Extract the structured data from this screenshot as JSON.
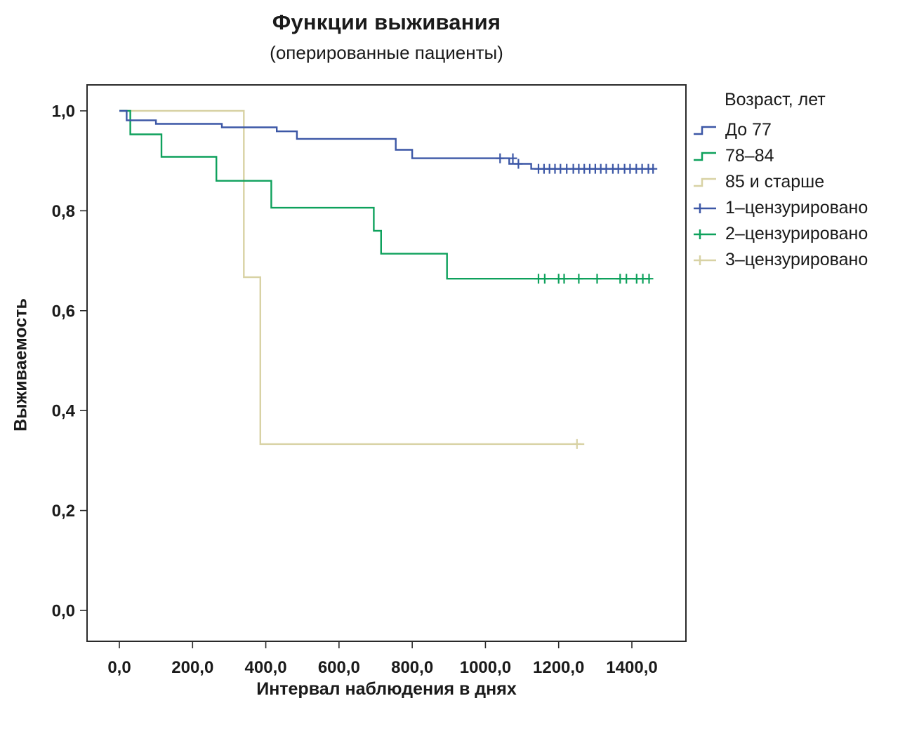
{
  "title": "Функции выживания",
  "subtitle": "(оперированные пациенты)",
  "x_axis_label": "Интервал наблюдения в днях",
  "y_axis_label": "Выживаемость",
  "legend": {
    "title": "Возраст, лет",
    "entries": [
      {
        "label": "До 77",
        "color": "#3C57A6",
        "type": "step"
      },
      {
        "label": "78–84",
        "color": "#0EA15C",
        "type": "step"
      },
      {
        "label": "85 и старше",
        "color": "#D8D2A4",
        "type": "step"
      },
      {
        "label": "1–цензурировано",
        "color": "#3C57A6",
        "type": "censor"
      },
      {
        "label": "2–цензурировано",
        "color": "#0EA15C",
        "type": "censor"
      },
      {
        "label": "3–цензурировано",
        "color": "#D8D2A4",
        "type": "censor"
      }
    ]
  },
  "chart_data": {
    "type": "line",
    "subtype": "kaplan-meier-step",
    "title": "Функции выживания (оперированные пациенты)",
    "xlabel": "Интервал наблюдения в днях",
    "ylabel": "Выживаемость",
    "xlim": [
      -90,
      1550
    ],
    "ylim": [
      -0.06,
      1.05
    ],
    "grid": false,
    "legend_position": "right-top",
    "x_ticks": {
      "values": [
        0,
        200,
        400,
        600,
        800,
        1000,
        1200,
        1400
      ],
      "labels": [
        "0,0",
        "200,0",
        "400,0",
        "600,0",
        "800,0",
        "1000,0",
        "1200,0",
        "1400,0"
      ]
    },
    "y_ticks": {
      "values": [
        0,
        0.2,
        0.4,
        0.6,
        0.8,
        1.0
      ],
      "labels": [
        "0,0",
        "0,2",
        "0,4",
        "0,6",
        "0,8",
        "1,0"
      ]
    },
    "series": [
      {
        "name": "85 и старше",
        "color": "#D8D2A4",
        "points": [
          [
            0,
            1.0
          ],
          [
            340,
            1.0
          ],
          [
            340,
            0.667
          ],
          [
            385,
            0.667
          ],
          [
            385,
            0.333
          ],
          [
            1270,
            0.333
          ]
        ],
        "censored": [
          [
            1250,
            0.333
          ]
        ]
      },
      {
        "name": "78–84",
        "color": "#0EA15C",
        "points": [
          [
            0,
            1.0
          ],
          [
            30,
            1.0
          ],
          [
            30,
            0.953
          ],
          [
            115,
            0.953
          ],
          [
            115,
            0.908
          ],
          [
            265,
            0.908
          ],
          [
            265,
            0.86
          ],
          [
            415,
            0.86
          ],
          [
            415,
            0.806
          ],
          [
            695,
            0.806
          ],
          [
            695,
            0.76
          ],
          [
            715,
            0.76
          ],
          [
            715,
            0.714
          ],
          [
            895,
            0.714
          ],
          [
            895,
            0.664
          ],
          [
            1450,
            0.664
          ]
        ],
        "censored": [
          [
            1145,
            0.664
          ],
          [
            1162,
            0.664
          ],
          [
            1200,
            0.664
          ],
          [
            1215,
            0.664
          ],
          [
            1255,
            0.664
          ],
          [
            1305,
            0.664
          ],
          [
            1368,
            0.664
          ],
          [
            1385,
            0.664
          ],
          [
            1413,
            0.664
          ],
          [
            1430,
            0.664
          ],
          [
            1447,
            0.664
          ]
        ]
      },
      {
        "name": "До 77",
        "color": "#3C57A6",
        "points": [
          [
            0,
            1.0
          ],
          [
            20,
            1.0
          ],
          [
            20,
            0.981
          ],
          [
            100,
            0.981
          ],
          [
            100,
            0.974
          ],
          [
            280,
            0.974
          ],
          [
            280,
            0.967
          ],
          [
            430,
            0.967
          ],
          [
            430,
            0.959
          ],
          [
            485,
            0.959
          ],
          [
            485,
            0.944
          ],
          [
            755,
            0.944
          ],
          [
            755,
            0.922
          ],
          [
            800,
            0.922
          ],
          [
            800,
            0.905
          ],
          [
            1065,
            0.905
          ],
          [
            1065,
            0.894
          ],
          [
            1125,
            0.894
          ],
          [
            1125,
            0.884
          ],
          [
            1460,
            0.884
          ]
        ],
        "censored": [
          [
            1040,
            0.905
          ],
          [
            1075,
            0.905
          ],
          [
            1090,
            0.894
          ],
          [
            1145,
            0.884
          ],
          [
            1160,
            0.884
          ],
          [
            1175,
            0.884
          ],
          [
            1190,
            0.884
          ],
          [
            1205,
            0.884
          ],
          [
            1222,
            0.884
          ],
          [
            1240,
            0.884
          ],
          [
            1255,
            0.884
          ],
          [
            1270,
            0.884
          ],
          [
            1285,
            0.884
          ],
          [
            1300,
            0.884
          ],
          [
            1315,
            0.884
          ],
          [
            1330,
            0.884
          ],
          [
            1348,
            0.884
          ],
          [
            1363,
            0.884
          ],
          [
            1380,
            0.884
          ],
          [
            1395,
            0.884
          ],
          [
            1412,
            0.884
          ],
          [
            1428,
            0.884
          ],
          [
            1445,
            0.884
          ],
          [
            1458,
            0.884
          ]
        ]
      }
    ]
  }
}
